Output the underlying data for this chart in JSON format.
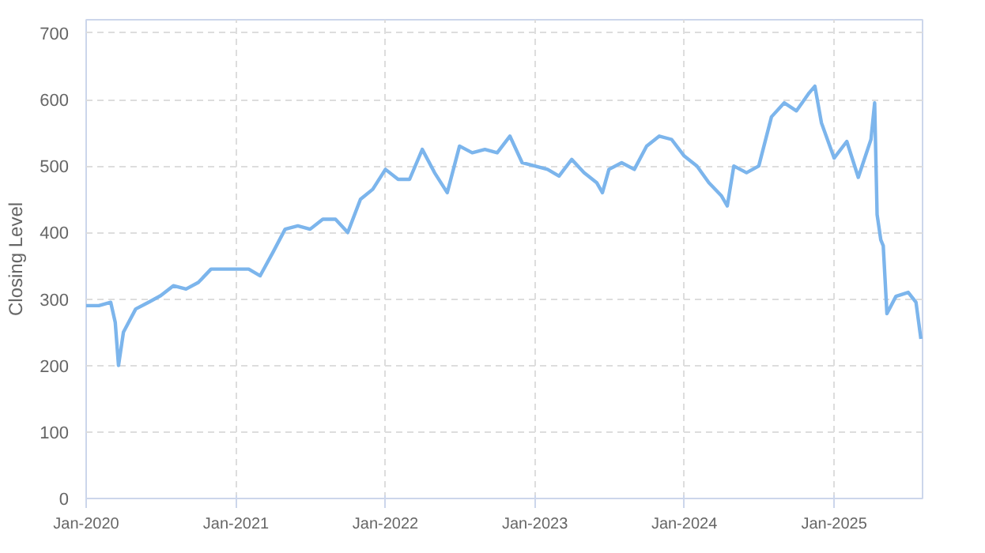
{
  "chart_data": {
    "type": "line",
    "ylabel": "Closing Level",
    "x": [
      "2020-01-01",
      "2020-02-01",
      "2020-03-01",
      "2020-03-12",
      "2020-03-20",
      "2020-04-01",
      "2020-05-01",
      "2020-06-01",
      "2020-07-01",
      "2020-08-01",
      "2020-09-01",
      "2020-10-01",
      "2020-11-01",
      "2020-12-01",
      "2021-01-01",
      "2021-02-01",
      "2021-03-01",
      "2021-04-01",
      "2021-05-01",
      "2021-06-01",
      "2021-07-01",
      "2021-08-01",
      "2021-09-01",
      "2021-10-01",
      "2021-11-01",
      "2021-12-01",
      "2022-01-01",
      "2022-02-01",
      "2022-03-01",
      "2022-04-01",
      "2022-05-01",
      "2022-06-01",
      "2022-07-01",
      "2022-08-01",
      "2022-09-01",
      "2022-10-01",
      "2022-11-01",
      "2022-12-01",
      "2023-01-01",
      "2023-02-01",
      "2023-03-01",
      "2023-04-01",
      "2023-05-01",
      "2023-06-01",
      "2023-06-15",
      "2023-07-01",
      "2023-08-01",
      "2023-09-01",
      "2023-10-01",
      "2023-11-01",
      "2023-12-01",
      "2024-01-01",
      "2024-02-01",
      "2024-03-01",
      "2024-04-01",
      "2024-04-15",
      "2024-05-01",
      "2024-06-01",
      "2024-07-01",
      "2024-08-01",
      "2024-09-01",
      "2024-10-01",
      "2024-11-01",
      "2024-11-15",
      "2024-12-01",
      "2025-01-01",
      "2025-02-01",
      "2025-03-01",
      "2025-04-01",
      "2025-04-10",
      "2025-04-16",
      "2025-04-25",
      "2025-05-01",
      "2025-05-10",
      "2025-06-01",
      "2025-07-01",
      "2025-07-20",
      "2025-08-01"
    ],
    "series": [
      {
        "color": "#7cb5ec",
        "values": [
          290,
          290,
          295,
          265,
          200,
          250,
          285,
          295,
          305,
          320,
          315,
          325,
          345,
          345,
          345,
          345,
          335,
          370,
          405,
          410,
          405,
          420,
          420,
          400,
          450,
          465,
          495,
          480,
          480,
          525,
          490,
          460,
          530,
          520,
          525,
          520,
          545,
          505,
          500,
          495,
          485,
          510,
          490,
          475,
          460,
          495,
          505,
          495,
          530,
          545,
          540,
          515,
          500,
          475,
          455,
          440,
          500,
          490,
          500,
          574,
          595,
          583,
          610,
          620,
          565,
          512,
          537,
          483,
          540,
          595,
          427,
          389,
          380,
          278,
          304,
          310,
          295,
          240
        ]
      }
    ],
    "xlim": [
      "2020-01-01",
      "2025-08-05"
    ],
    "xticks": [
      {
        "value": "2020-01-01",
        "label": "Jan-2020"
      },
      {
        "value": "2021-01-01",
        "label": "Jan-2021"
      },
      {
        "value": "2022-01-01",
        "label": "Jan-2022"
      },
      {
        "value": "2023-01-01",
        "label": "Jan-2023"
      },
      {
        "value": "2024-01-01",
        "label": "Jan-2024"
      },
      {
        "value": "2025-01-01",
        "label": "Jan-2025"
      }
    ],
    "ylim": [
      0,
      720
    ],
    "yticks": [
      0,
      100,
      200,
      300,
      400,
      500,
      600,
      700
    ],
    "grid": true,
    "line_style": "solid"
  }
}
